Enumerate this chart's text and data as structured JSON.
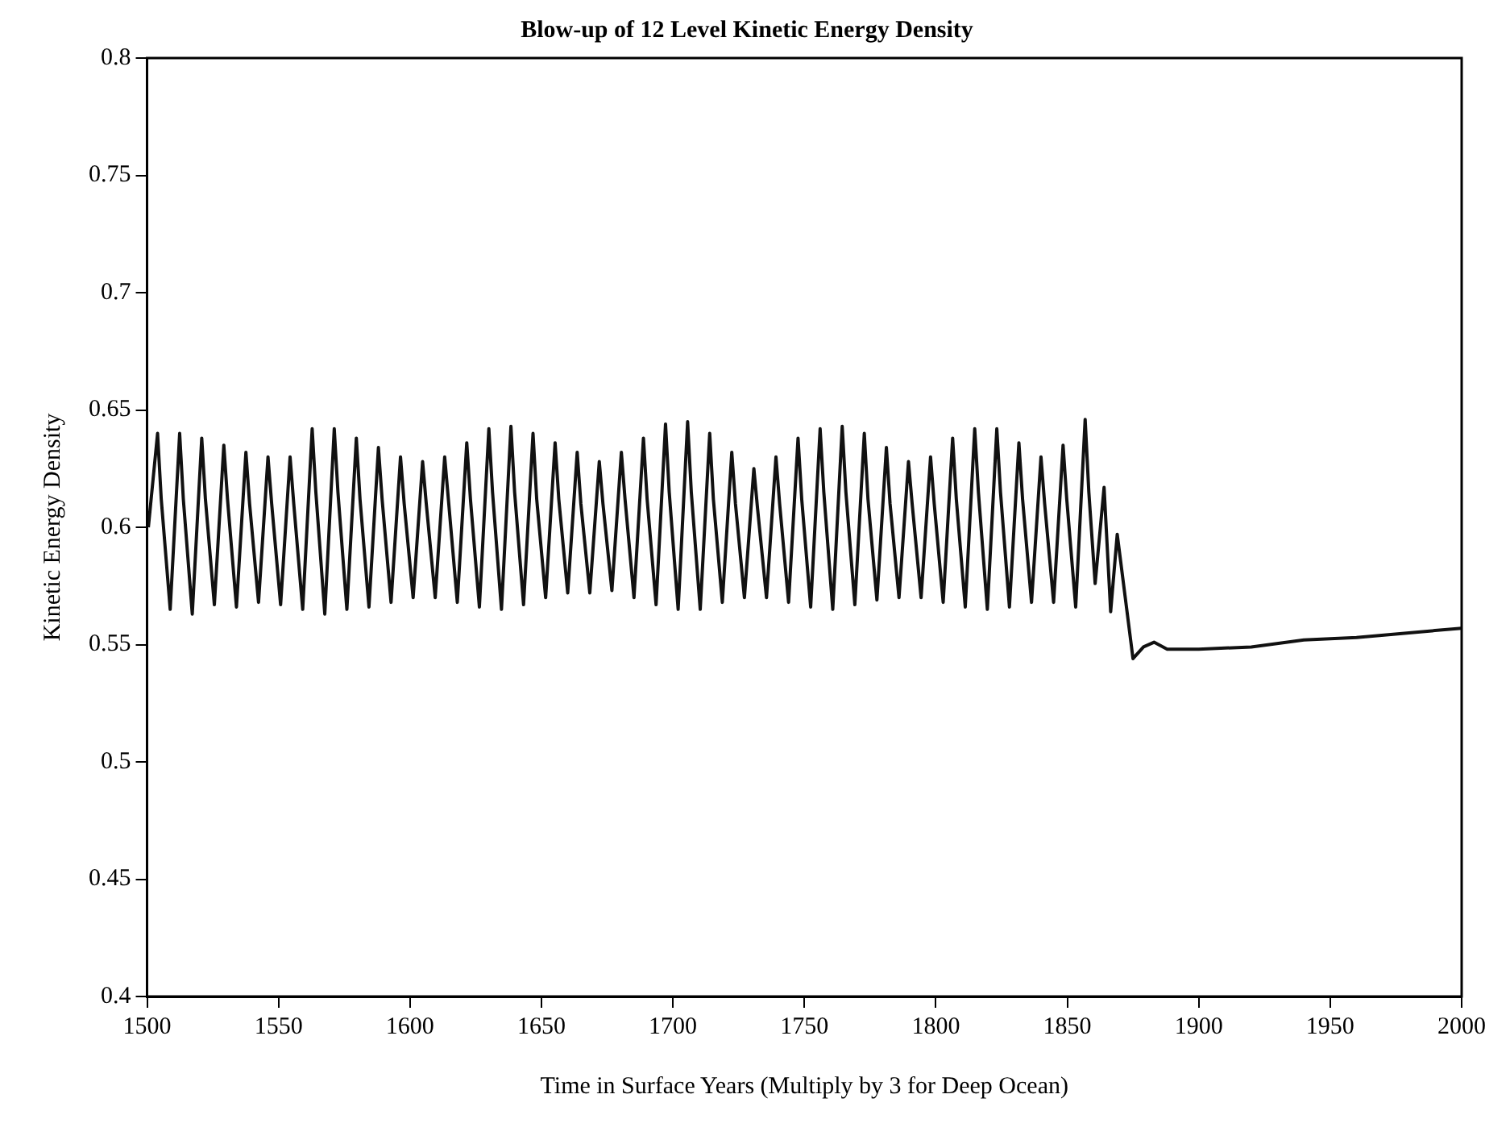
{
  "chart_data": {
    "type": "line",
    "title": "Blow-up of 12 Level Kinetic Energy Density",
    "xlabel": "Time in Surface Years (Multiply by 3 for Deep Ocean)",
    "ylabel": "Kinetic Energy Density",
    "xlim": [
      1500,
      2000
    ],
    "xticks": [
      1500,
      1550,
      1600,
      1650,
      1700,
      1750,
      1800,
      1850,
      1900,
      1950,
      2000
    ],
    "ylim": [
      0.4,
      0.8
    ],
    "yticks": [
      0.4,
      0.45,
      0.5,
      0.55,
      0.6,
      0.65,
      0.7,
      0.75,
      0.8
    ],
    "grid": false,
    "legend": false,
    "marker": "none",
    "line_style": "solid",
    "series": [
      {
        "color": "#111111",
        "x": [
          1500.5,
          1504.0,
          1505.4,
          1508.8,
          1512.4,
          1513.8,
          1517.2,
          1520.8,
          1522.2,
          1525.6,
          1529.2,
          1530.6,
          1534.0,
          1537.6,
          1539.0,
          1542.4,
          1546.0,
          1547.4,
          1550.8,
          1554.4,
          1555.8,
          1559.2,
          1562.8,
          1564.2,
          1567.6,
          1571.2,
          1572.6,
          1576.0,
          1579.6,
          1581.0,
          1584.4,
          1588.0,
          1589.4,
          1592.8,
          1596.4,
          1597.8,
          1601.2,
          1604.8,
          1606.2,
          1609.6,
          1613.2,
          1614.6,
          1618.0,
          1621.6,
          1623.0,
          1626.4,
          1630.0,
          1631.4,
          1634.8,
          1638.4,
          1639.8,
          1643.2,
          1646.8,
          1648.2,
          1651.6,
          1655.2,
          1656.6,
          1660.0,
          1663.6,
          1665.0,
          1668.4,
          1672.0,
          1673.4,
          1676.8,
          1680.4,
          1681.8,
          1685.2,
          1688.8,
          1690.2,
          1693.6,
          1697.2,
          1698.6,
          1702.0,
          1705.6,
          1707.0,
          1710.4,
          1714.0,
          1715.4,
          1718.8,
          1722.4,
          1723.8,
          1727.2,
          1730.8,
          1732.2,
          1735.6,
          1739.2,
          1740.6,
          1744.0,
          1747.6,
          1749.0,
          1752.4,
          1756.0,
          1757.4,
          1760.8,
          1764.4,
          1765.8,
          1769.2,
          1772.8,
          1774.2,
          1777.6,
          1781.2,
          1782.6,
          1786.0,
          1789.6,
          1791.0,
          1794.4,
          1798.0,
          1799.4,
          1802.8,
          1806.4,
          1807.8,
          1811.2,
          1814.8,
          1816.2,
          1819.6,
          1823.2,
          1824.6,
          1828.0,
          1831.6,
          1833.0,
          1836.4,
          1840.0,
          1841.4,
          1844.8,
          1848.4,
          1849.8,
          1853.2,
          1856.8,
          1858.2,
          1860.6,
          1864.0,
          1866.5,
          1869.0,
          1875.0,
          1879.0,
          1883.0,
          1888.0,
          1900,
          1920,
          1940,
          1960,
          1980,
          2000
        ],
        "values": [
          0.6,
          0.64,
          0.612,
          0.565,
          0.64,
          0.612,
          0.563,
          0.638,
          0.612,
          0.567,
          0.635,
          0.612,
          0.566,
          0.632,
          0.61,
          0.568,
          0.63,
          0.61,
          0.567,
          0.63,
          0.61,
          0.565,
          0.642,
          0.615,
          0.563,
          0.642,
          0.615,
          0.565,
          0.638,
          0.612,
          0.566,
          0.634,
          0.612,
          0.568,
          0.63,
          0.61,
          0.57,
          0.628,
          0.61,
          0.57,
          0.63,
          0.612,
          0.568,
          0.636,
          0.612,
          0.566,
          0.642,
          0.615,
          0.565,
          0.643,
          0.615,
          0.567,
          0.64,
          0.612,
          0.57,
          0.636,
          0.612,
          0.572,
          0.632,
          0.61,
          0.572,
          0.628,
          0.61,
          0.573,
          0.632,
          0.612,
          0.57,
          0.638,
          0.612,
          0.567,
          0.644,
          0.615,
          0.565,
          0.645,
          0.615,
          0.565,
          0.64,
          0.612,
          0.568,
          0.632,
          0.61,
          0.57,
          0.625,
          0.608,
          0.57,
          0.63,
          0.61,
          0.568,
          0.638,
          0.612,
          0.566,
          0.642,
          0.615,
          0.565,
          0.643,
          0.615,
          0.567,
          0.64,
          0.612,
          0.569,
          0.634,
          0.61,
          0.57,
          0.628,
          0.61,
          0.57,
          0.63,
          0.61,
          0.568,
          0.638,
          0.612,
          0.566,
          0.642,
          0.615,
          0.565,
          0.642,
          0.615,
          0.566,
          0.636,
          0.612,
          0.568,
          0.63,
          0.61,
          0.568,
          0.635,
          0.612,
          0.566,
          0.646,
          0.615,
          0.576,
          0.617,
          0.564,
          0.597,
          0.544,
          0.549,
          0.551,
          0.548,
          0.548,
          0.549,
          0.552,
          0.553,
          0.555,
          0.557
        ]
      }
    ]
  }
}
